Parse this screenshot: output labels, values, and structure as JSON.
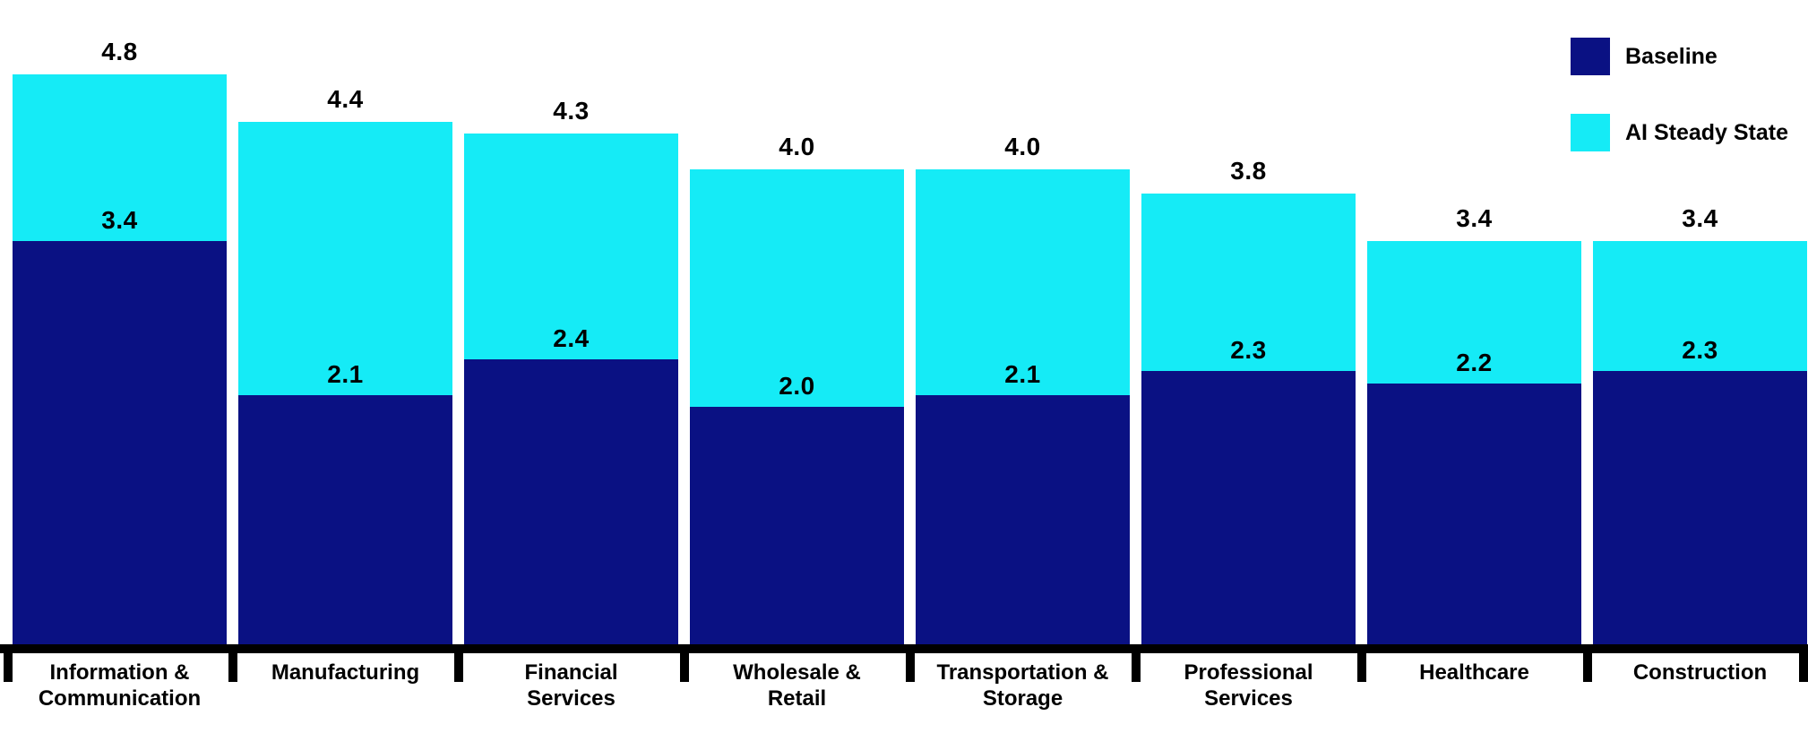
{
  "legend": {
    "items": [
      {
        "label": "Baseline",
        "color": "#0A1183"
      },
      {
        "label": "AI Steady State",
        "color": "#15EBF6"
      }
    ],
    "position": "top-right"
  },
  "chart_data": {
    "type": "bar",
    "stacked": true,
    "title": "",
    "xlabel": "",
    "ylabel": "",
    "categories": [
      "Information & Communication",
      "Manufacturing",
      "Financial Services",
      "Wholesale & Retail",
      "Transportation & Storage",
      "Professional Services",
      "Healthcare",
      "Construction"
    ],
    "category_lines": [
      [
        "Information &",
        "Communication"
      ],
      [
        "Manufacturing"
      ],
      [
        "Financial",
        "Services"
      ],
      [
        "Wholesale &",
        "Retail"
      ],
      [
        "Transportation &",
        "Storage"
      ],
      [
        "Professional",
        "Services"
      ],
      [
        "Healthcare"
      ],
      [
        "Construction"
      ]
    ],
    "series": [
      {
        "name": "Baseline",
        "color": "#0A1183",
        "values": [
          3.4,
          2.1,
          2.4,
          2.0,
          2.1,
          2.3,
          2.2,
          2.3
        ]
      },
      {
        "name": "AI Steady State",
        "color": "#15EBF6",
        "values": [
          1.4,
          2.3,
          1.9,
          2.0,
          1.9,
          1.5,
          1.2,
          1.1
        ]
      }
    ],
    "totals": [
      4.8,
      4.4,
      4.3,
      4.0,
      4.0,
      3.8,
      3.4,
      3.4
    ],
    "baseline_labels": [
      "3.4",
      "2.1",
      "2.4",
      "2.0",
      "2.1",
      "2.3",
      "2.2",
      "2.3"
    ],
    "total_labels": [
      "4.8",
      "4.4",
      "4.3",
      "4.0",
      "4.0",
      "3.8",
      "3.4",
      "3.4"
    ],
    "ylim": [
      0,
      4.8
    ],
    "grid": false,
    "axis_color": "#000000",
    "legend_position": "top-right"
  }
}
